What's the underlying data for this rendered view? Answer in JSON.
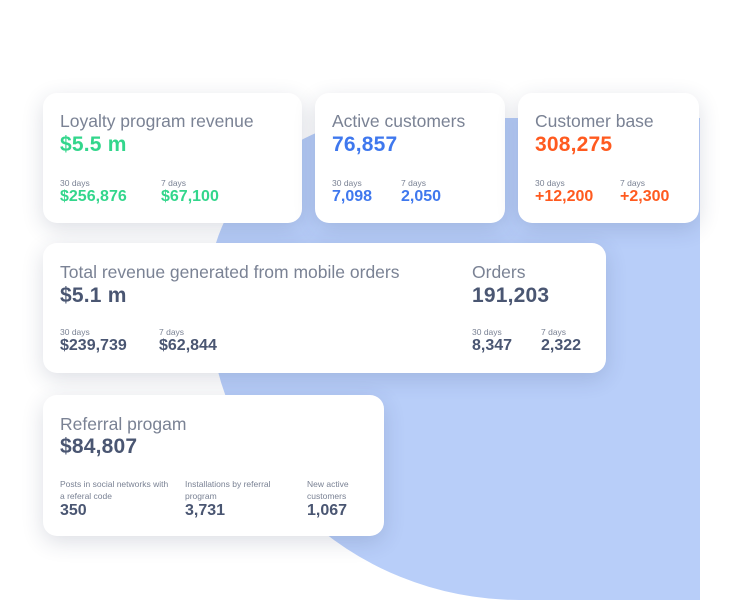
{
  "colors": {
    "green": "#33d68c",
    "blue": "#3f78ee",
    "orange": "#ff5a1f",
    "dark": "#4a5672",
    "blob": "#b8cef9"
  },
  "loyalty": {
    "title": "Loyalty program revenue",
    "value": "$5.5 m",
    "label_30": "30 days",
    "value_30": "$256,876",
    "label_7": "7 days",
    "value_7": "$67,100"
  },
  "active": {
    "title": "Active customers",
    "value": "76,857",
    "label_30": "30 days",
    "value_30": "7,098",
    "label_7": "7 days",
    "value_7": "2,050"
  },
  "base": {
    "title": "Customer base",
    "value": "308,275",
    "label_30": "30 days",
    "value_30": "+12,200",
    "label_7": "7 days",
    "value_7": "+2,300"
  },
  "mobile": {
    "title": "Total revenue generated from mobile orders",
    "value": "$5.1 m",
    "label_30": "30 days",
    "value_30": "$239,739",
    "label_7": "7 days",
    "value_7": "$62,844"
  },
  "orders": {
    "title": "Orders",
    "value": "191,203",
    "label_30": "30 days",
    "value_30": "8,347",
    "label_7": "7 days",
    "value_7": "2,322"
  },
  "referral": {
    "title": "Referral progam",
    "value": "$84,807",
    "posts_label": "Posts in social networks with a referal code",
    "posts_value": "350",
    "installs_label": "Installations by referral program",
    "installs_value": "3,731",
    "new_label": "New active customers",
    "new_value": "1,067"
  }
}
